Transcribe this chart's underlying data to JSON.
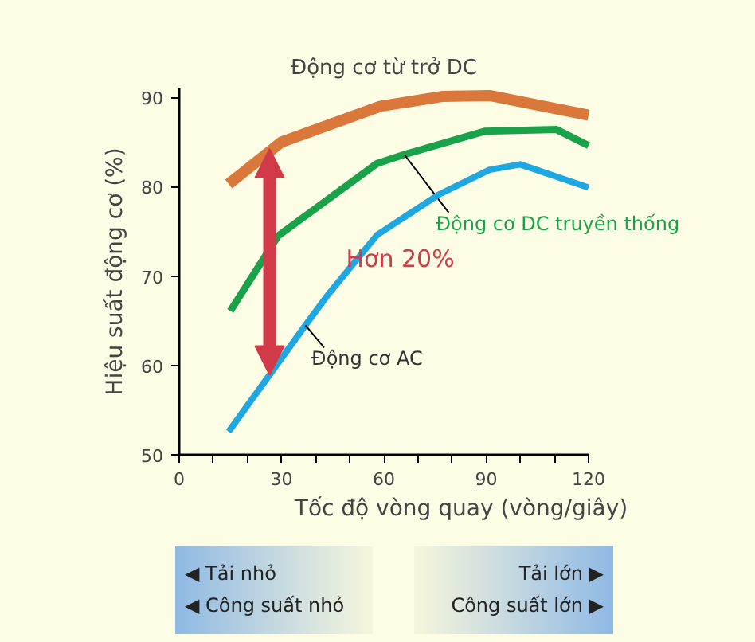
{
  "chart_data": {
    "type": "line",
    "xlabel": "Tốc độ vòng quay (vòng/giây)",
    "ylabel": "Hiệu suất động cơ (%)",
    "xlim": [
      0,
      120
    ],
    "ylim": [
      50,
      91
    ],
    "xticks": [
      0,
      {
        "value": 10,
        "label": null
      },
      {
        "value": 20,
        "label": null
      },
      30,
      {
        "value": 40,
        "label": null
      },
      {
        "value": 50,
        "label": null
      },
      60,
      {
        "value": 70,
        "label": null
      },
      {
        "value": 80,
        "label": null
      },
      90,
      {
        "value": 100,
        "label": null
      },
      {
        "value": 110,
        "label": null
      },
      120
    ],
    "yticks": [
      50,
      60,
      70,
      80,
      90
    ],
    "grid": false,
    "legend": false,
    "marker": "none",
    "line_style": "solid",
    "series": [
      {
        "name": "Động cơ từ trở DC",
        "color": "#d9783a",
        "x": [
          14.5,
          30,
          59,
          77,
          91,
          120
        ],
        "values": [
          80.3,
          85,
          89,
          90.1,
          90.2,
          88
        ]
      },
      {
        "name": "Động cơ DC truyền thống",
        "color": "#1aa24a",
        "x": [
          15,
          29,
          58,
          66,
          89.5,
          110.6,
          120
        ],
        "values": [
          66.1,
          74.5,
          82.6,
          83.6,
          86.2,
          86.4,
          84.6
        ]
      },
      {
        "name": "Động cơ AC",
        "color": "#1ea7e1",
        "x": [
          14.5,
          37,
          44,
          58,
          76,
          91,
          100,
          120
        ],
        "values": [
          52.6,
          64.5,
          68.1,
          74.6,
          79.1,
          81.9,
          82.5,
          79.9
        ]
      }
    ],
    "annotations": [
      "Hơn 20%",
      "◀ Tải nhỏ",
      "◀ Công suất nhỏ",
      "Tải lớn ▶",
      "Công suất lớn ▶"
    ]
  }
}
